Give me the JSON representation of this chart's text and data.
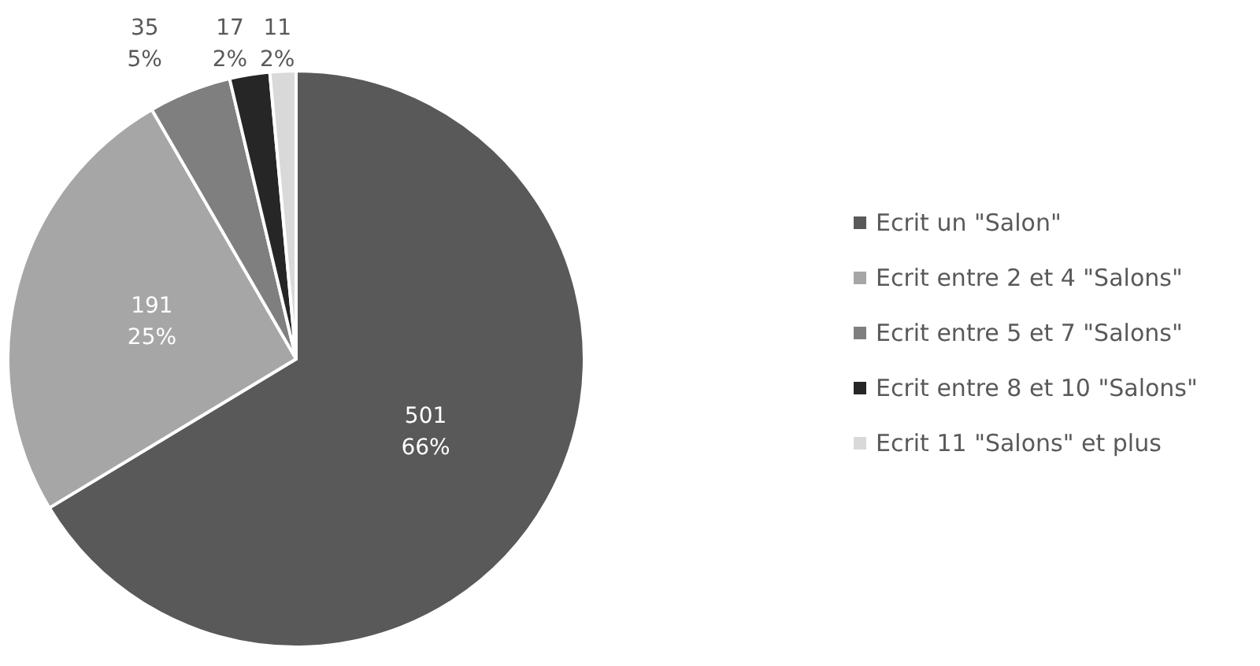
{
  "chart_data": {
    "type": "pie",
    "categories": [
      "Ecrit un \"Salon\"",
      "Ecrit entre 2 et 4 \"Salons\"",
      "Ecrit entre 5 et 7 \"Salons\"",
      "Ecrit entre 8 et 10 \"Salons\"",
      "Ecrit 11 \"Salons\" et plus"
    ],
    "values": [
      501,
      191,
      35,
      17,
      11
    ],
    "colors": [
      "#595959",
      "#a6a6a6",
      "#7f7f7f",
      "#262626",
      "#d9d9d9"
    ],
    "value_labels": [
      "501\n66%",
      "191\n25%",
      "35\n5%",
      "17\n2%",
      "11\n2%"
    ],
    "legend": "right"
  }
}
